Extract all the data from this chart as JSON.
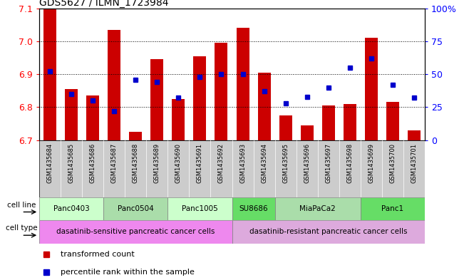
{
  "title": "GDS5627 / ILMN_1723984",
  "samples": [
    "GSM1435684",
    "GSM1435685",
    "GSM1435686",
    "GSM1435687",
    "GSM1435688",
    "GSM1435689",
    "GSM1435690",
    "GSM1435691",
    "GSM1435692",
    "GSM1435693",
    "GSM1435694",
    "GSM1435695",
    "GSM1435696",
    "GSM1435697",
    "GSM1435698",
    "GSM1435699",
    "GSM1435700",
    "GSM1435701"
  ],
  "bar_values": [
    7.1,
    6.855,
    6.835,
    7.035,
    6.725,
    6.945,
    6.825,
    6.955,
    6.995,
    7.04,
    6.905,
    6.775,
    6.745,
    6.805,
    6.81,
    7.01,
    6.815,
    6.73
  ],
  "blue_values": [
    52,
    35,
    30,
    22,
    46,
    44,
    32,
    48,
    50,
    50,
    37,
    28,
    33,
    40,
    55,
    62,
    42,
    32
  ],
  "ylim_left": [
    6.7,
    7.1
  ],
  "ylim_right": [
    0,
    100
  ],
  "yticks_left": [
    6.7,
    6.8,
    6.9,
    7.0,
    7.1
  ],
  "yticks_right": [
    0,
    25,
    50,
    75,
    100
  ],
  "ytick_labels_right": [
    "0",
    "25",
    "50",
    "75",
    "100%"
  ],
  "bar_color": "#cc0000",
  "blue_color": "#0000cc",
  "cell_lines": [
    {
      "label": "Panc0403",
      "start": 0,
      "end": 3,
      "color": "#ccffcc"
    },
    {
      "label": "Panc0504",
      "start": 3,
      "end": 6,
      "color": "#aaddaa"
    },
    {
      "label": "Panc1005",
      "start": 6,
      "end": 9,
      "color": "#ccffcc"
    },
    {
      "label": "SU8686",
      "start": 9,
      "end": 11,
      "color": "#66dd66"
    },
    {
      "label": "MiaPaCa2",
      "start": 11,
      "end": 15,
      "color": "#aaddaa"
    },
    {
      "label": "Panc1",
      "start": 15,
      "end": 18,
      "color": "#66dd66"
    }
  ],
  "cell_types": [
    {
      "label": "dasatinib-sensitive pancreatic cancer cells",
      "start": 0,
      "end": 9,
      "color": "#ee88ee"
    },
    {
      "label": "dasatinib-resistant pancreatic cancer cells",
      "start": 9,
      "end": 18,
      "color": "#ddaadd"
    }
  ],
  "legend_bar_label": "transformed count",
  "legend_blue_label": "percentile rank within the sample",
  "xlabel_cellline": "cell line",
  "xlabel_celltype": "cell type",
  "bg_color": "#ffffff",
  "tick_bg": "#cccccc",
  "n_samples": 18,
  "figw": 6.51,
  "figh": 3.93,
  "dpi": 100
}
